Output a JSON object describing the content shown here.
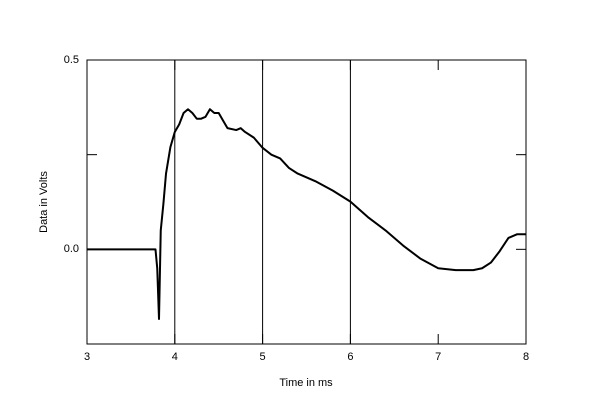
{
  "chart_data": {
    "type": "line",
    "xlabel": "Time in ms",
    "ylabel": "Data in Volts",
    "x": [
      3.0,
      3.78,
      3.8,
      3.82,
      3.84,
      3.87,
      3.9,
      3.95,
      4.0,
      4.05,
      4.1,
      4.15,
      4.2,
      4.25,
      4.3,
      4.35,
      4.4,
      4.45,
      4.5,
      4.55,
      4.6,
      4.7,
      4.75,
      4.8,
      4.9,
      5.0,
      5.1,
      5.2,
      5.3,
      5.4,
      5.6,
      5.8,
      6.0,
      6.2,
      6.4,
      6.6,
      6.8,
      7.0,
      7.2,
      7.4,
      7.5,
      7.6,
      7.7,
      7.8,
      7.9,
      8.0
    ],
    "series": [
      {
        "color": "#000000",
        "values": [
          0,
          0,
          -0.05,
          -0.184,
          0.05,
          0.12,
          0.2,
          0.27,
          0.31,
          0.33,
          0.36,
          0.37,
          0.36,
          0.345,
          0.345,
          0.35,
          0.37,
          0.36,
          0.36,
          0.34,
          0.32,
          0.315,
          0.32,
          0.31,
          0.295,
          0.268,
          0.25,
          0.24,
          0.215,
          0.2,
          0.18,
          0.155,
          0.126,
          0.085,
          0.05,
          0.01,
          -0.025,
          -0.05,
          -0.055,
          -0.055,
          -0.05,
          -0.035,
          -0.005,
          0.03,
          0.04,
          0.04
        ]
      }
    ],
    "xlim": [
      3,
      8
    ],
    "xticks": [
      3,
      4,
      5,
      6,
      7,
      8
    ],
    "xgrid": [
      4,
      5,
      6
    ],
    "ylim": [
      -0.25,
      0.5
    ],
    "yticks": [
      {
        "value": 0,
        "label": "0.0"
      },
      0.5
    ],
    "yminor_ticks": [
      0.25
    ]
  }
}
